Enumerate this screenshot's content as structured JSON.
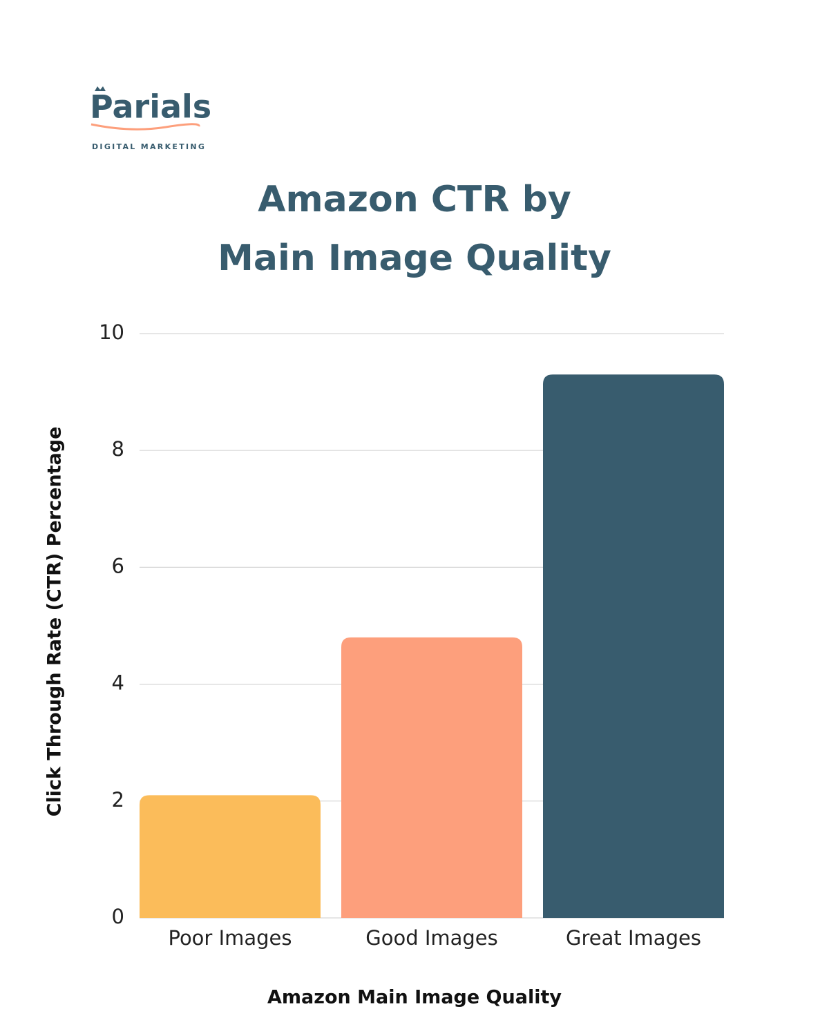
{
  "logo": {
    "name": "Parials",
    "tagline": "DIGITAL MARKETING"
  },
  "chart_data": {
    "type": "bar",
    "title": [
      "Amazon CTR by",
      "Main Image Quality"
    ],
    "x_label": "Amazon Main Image Quality",
    "y_label": "Click Through Rate (CTR) Percentage",
    "categories": [
      "Poor Images",
      "Good Images",
      "Great Images"
    ],
    "values": [
      2.1,
      4.8,
      9.3
    ],
    "colors": [
      "#fbbc5a",
      "#fd9f7c",
      "#385c6e"
    ],
    "ylim": [
      0,
      10
    ],
    "yticks": [
      0,
      2,
      4,
      6,
      8,
      10
    ],
    "grid": true
  }
}
